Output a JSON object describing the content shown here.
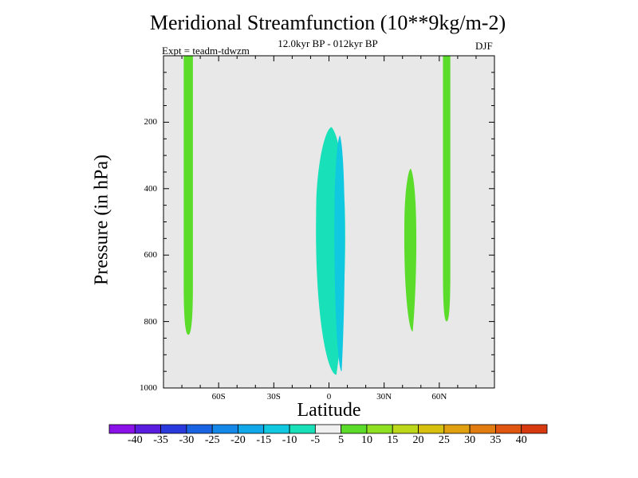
{
  "chart_data": {
    "type": "contour",
    "title": "Meridional Streamfunction (10**9kg/m-2)",
    "subtitle": "12.0kyr BP - 012kyr BP",
    "experiment": "Expt = teadm-tdwzm",
    "season": "DJF",
    "xlabel": "Latitude",
    "ylabel": "Pressure (in hPa)",
    "xlim": [
      -90,
      90
    ],
    "ylim": [
      1000,
      0
    ],
    "x_tick_labels": [
      {
        "value": -60,
        "label": "60S"
      },
      {
        "value": -30,
        "label": "30S"
      },
      {
        "value": 0,
        "label": "0"
      },
      {
        "value": 30,
        "label": "30N"
      },
      {
        "value": 60,
        "label": "60N"
      }
    ],
    "y_tick_labels": [
      {
        "value": 200,
        "label": "200"
      },
      {
        "value": 400,
        "label": "400"
      },
      {
        "value": 600,
        "label": "600"
      },
      {
        "value": 800,
        "label": "800"
      },
      {
        "value": 1000,
        "label": "1000"
      }
    ],
    "background_color": "#e8e8e8",
    "regions": [
      {
        "name": "green-band-75S",
        "level": "5 to 10",
        "color": "#5cdc2a",
        "lat_range": [
          -79,
          -74
        ],
        "pressure_range": [
          0,
          840
        ]
      },
      {
        "name": "teal-cell-equator",
        "level": "-10 to -5",
        "color": "#18e0b8",
        "lat_range": [
          -7,
          10
        ],
        "pressure_range": [
          215,
          960
        ]
      },
      {
        "name": "blue-core-equator",
        "level": "-15 to -10",
        "color": "#10c8e0",
        "lat_range": [
          3,
          9
        ],
        "pressure_range": [
          240,
          950
        ]
      },
      {
        "name": "green-cell-45N",
        "level": "5 to 10",
        "color": "#5cdc2a",
        "lat_range": [
          41,
          48
        ],
        "pressure_range": [
          340,
          830
        ]
      },
      {
        "name": "green-band-63N",
        "level": "5 to 10",
        "color": "#5cdc2a",
        "lat_range": [
          62,
          66
        ],
        "pressure_range": [
          0,
          800
        ]
      }
    ],
    "colorbar": {
      "labels": [
        "-40",
        "-35",
        "-30",
        "-25",
        "-20",
        "-15",
        "-10",
        "-5",
        "5",
        "10",
        "15",
        "20",
        "25",
        "30",
        "35",
        "40"
      ],
      "colors": [
        "#8a12e8",
        "#5a1de0",
        "#2a3adc",
        "#1a64e4",
        "#1488e8",
        "#10a8e8",
        "#10c8e0",
        "#18e0b8",
        "#f0f0f0",
        "#5cdc2a",
        "#8ee020",
        "#bcd818",
        "#d8c010",
        "#e0a010",
        "#e07c10",
        "#e05510",
        "#d83a10"
      ]
    }
  }
}
